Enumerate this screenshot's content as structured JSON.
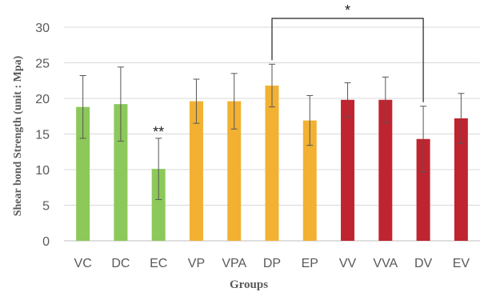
{
  "chart_data": {
    "type": "bar",
    "title": "",
    "xlabel": "Groups",
    "ylabel": "Shear bond Strength (unit : Mpa)",
    "ylim": [
      0,
      30
    ],
    "yticks": [
      0,
      5,
      10,
      15,
      20,
      25,
      30
    ],
    "grid": true,
    "categories": [
      "VC",
      "DC",
      "EC",
      "VP",
      "VPA",
      "DP",
      "EP",
      "VV",
      "VVA",
      "DV",
      "EV"
    ],
    "values": [
      18.8,
      19.2,
      10.1,
      19.6,
      19.6,
      21.8,
      16.9,
      19.8,
      19.8,
      14.3,
      17.2
    ],
    "errors": [
      4.4,
      5.2,
      4.3,
      3.1,
      3.9,
      3.0,
      3.5,
      2.4,
      3.2,
      4.6,
      3.5
    ],
    "bar_colors": [
      "#8dc85a",
      "#8dc85a",
      "#8dc85a",
      "#f2b132",
      "#f2b132",
      "#f2b132",
      "#f2b132",
      "#bf2530",
      "#bf2530",
      "#bf2530",
      "#bf2530"
    ],
    "annotations": [
      {
        "text": "**",
        "category": "EC"
      },
      {
        "text": "*",
        "bracket": [
          "DP",
          "DV"
        ]
      }
    ]
  }
}
